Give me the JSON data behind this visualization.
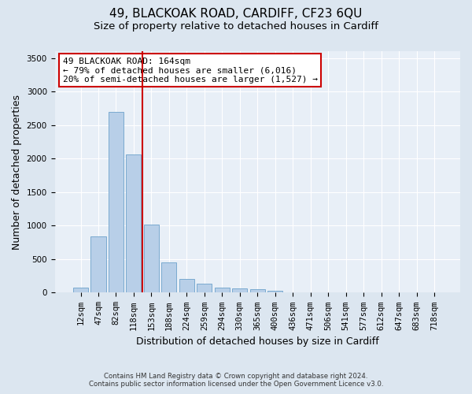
{
  "title": "49, BLACKOAK ROAD, CARDIFF, CF23 6QU",
  "subtitle": "Size of property relative to detached houses in Cardiff",
  "xlabel": "Distribution of detached houses by size in Cardiff",
  "ylabel": "Number of detached properties",
  "footer_line1": "Contains HM Land Registry data © Crown copyright and database right 2024.",
  "footer_line2": "Contains public sector information licensed under the Open Government Licence v3.0.",
  "categories": [
    "12sqm",
    "47sqm",
    "82sqm",
    "118sqm",
    "153sqm",
    "188sqm",
    "224sqm",
    "259sqm",
    "294sqm",
    "330sqm",
    "365sqm",
    "400sqm",
    "436sqm",
    "471sqm",
    "506sqm",
    "541sqm",
    "577sqm",
    "612sqm",
    "647sqm",
    "683sqm",
    "718sqm"
  ],
  "values": [
    70,
    840,
    2700,
    2060,
    1010,
    450,
    210,
    130,
    70,
    60,
    50,
    30,
    10,
    5,
    2,
    1,
    1,
    0,
    0,
    0,
    0
  ],
  "bar_color": "#b8cfe8",
  "bar_edge_color": "#7aaad0",
  "vline_color": "#cc0000",
  "annotation_text": "49 BLACKOAK ROAD: 164sqm\n← 79% of detached houses are smaller (6,016)\n20% of semi-detached houses are larger (1,527) →",
  "annotation_box_facecolor": "white",
  "annotation_box_edgecolor": "#cc0000",
  "ylim": [
    0,
    3600
  ],
  "yticks": [
    0,
    500,
    1000,
    1500,
    2000,
    2500,
    3000,
    3500
  ],
  "bg_color": "#dce6f0",
  "plot_bg_color": "#e8eff7",
  "title_fontsize": 11,
  "subtitle_fontsize": 9.5,
  "label_fontsize": 9,
  "tick_fontsize": 7.5,
  "annotation_fontsize": 8
}
